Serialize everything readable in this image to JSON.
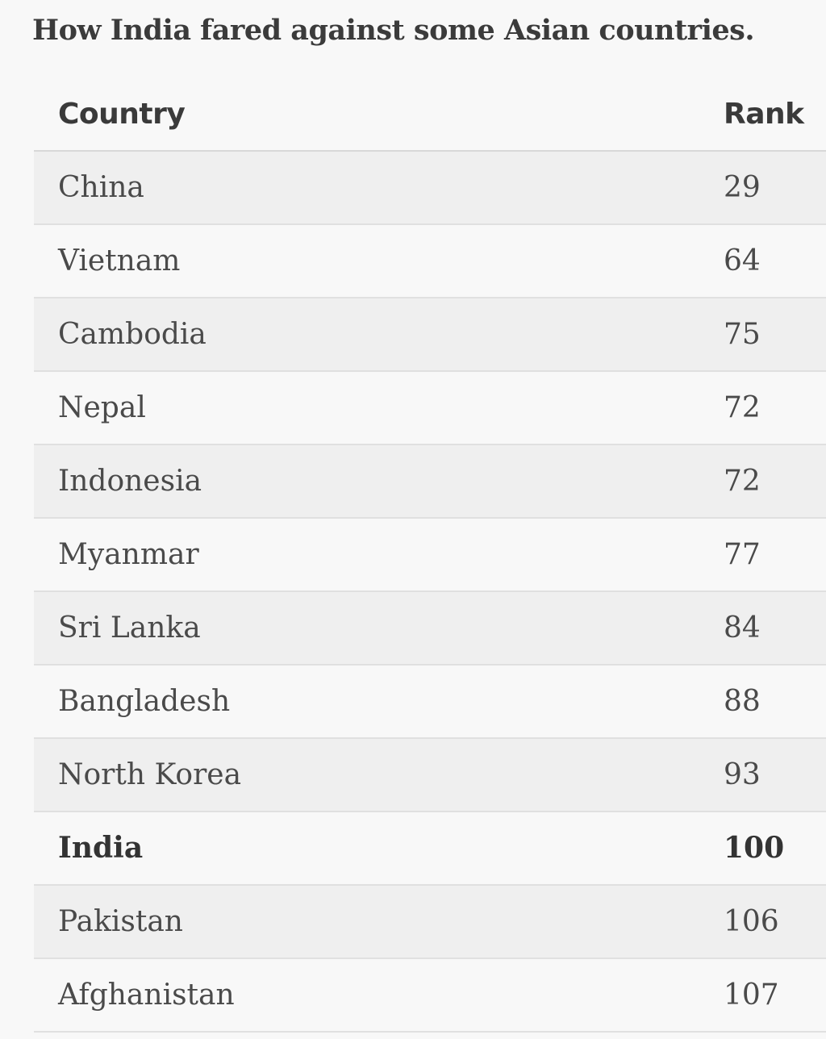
{
  "caption": "How India fared against some Asian countries.",
  "table": {
    "headers": {
      "country": "Country",
      "rank": "Rank"
    },
    "rows": [
      {
        "country": "China",
        "rank": "29",
        "highlighted": false
      },
      {
        "country": "Vietnam",
        "rank": "64",
        "highlighted": false
      },
      {
        "country": "Cambodia",
        "rank": "75",
        "highlighted": false
      },
      {
        "country": "Nepal",
        "rank": "72",
        "highlighted": false
      },
      {
        "country": "Indonesia",
        "rank": "72",
        "highlighted": false
      },
      {
        "country": "Myanmar",
        "rank": "77",
        "highlighted": false
      },
      {
        "country": "Sri Lanka",
        "rank": "84",
        "highlighted": false
      },
      {
        "country": "Bangladesh",
        "rank": "88",
        "highlighted": false
      },
      {
        "country": "North Korea",
        "rank": "93",
        "highlighted": false
      },
      {
        "country": "India",
        "rank": "100",
        "highlighted": true
      },
      {
        "country": "Pakistan",
        "rank": "106",
        "highlighted": false
      },
      {
        "country": "Afghanistan",
        "rank": "107",
        "highlighted": false
      }
    ]
  },
  "colors": {
    "page_background": "#f8f8f8",
    "stripe_background": "#efefef",
    "text": "#4a4a4a",
    "divider": "#e0e0e0"
  }
}
